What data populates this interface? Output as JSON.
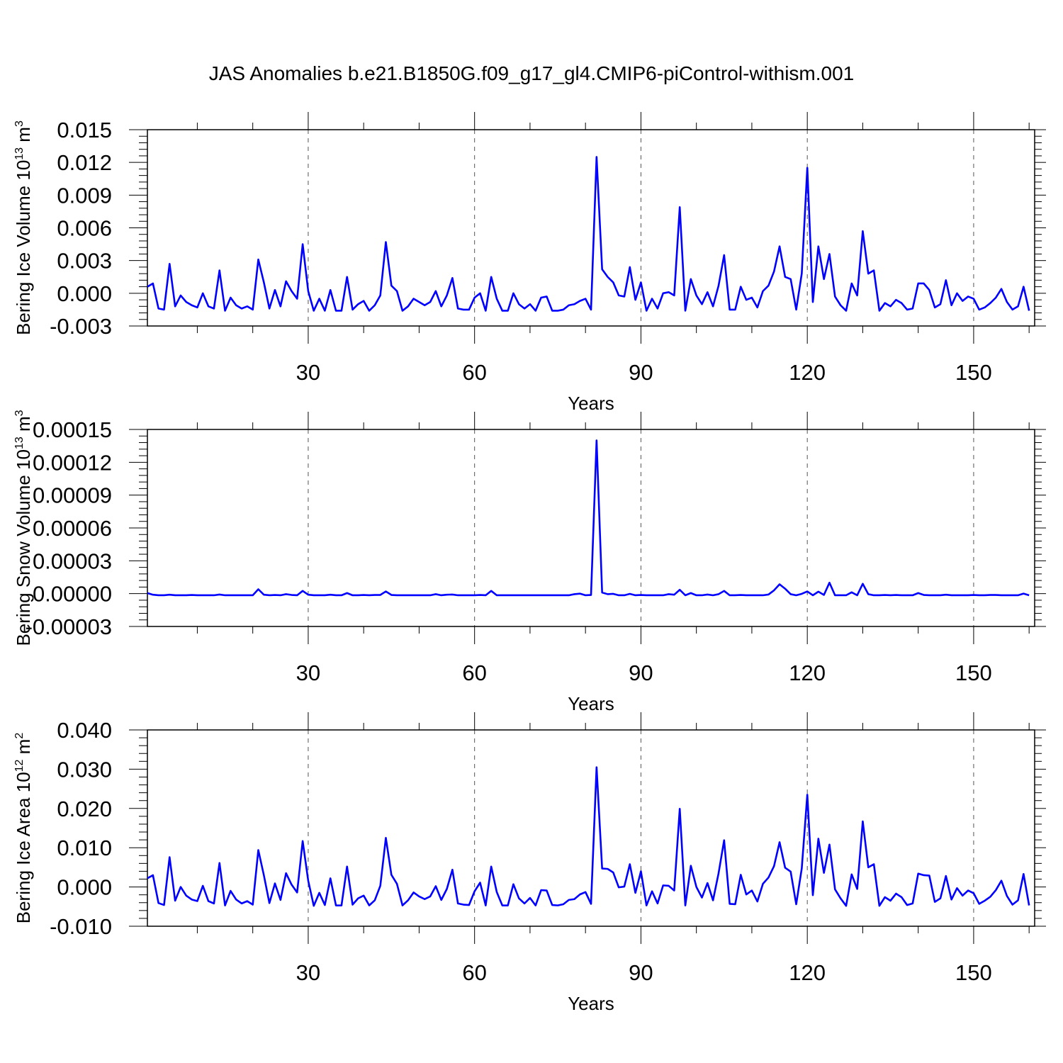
{
  "title": "JAS Anomalies b.e21.B1850G.f09_g17_gl4.CMIP6-piControl-withism.001",
  "line_color": "#0000ff",
  "chart_data": [
    {
      "type": "line",
      "title": "JAS Anomalies b.e21.B1850G.f09_g17_gl4.CMIP6-piControl-withism.001",
      "xlabel": "Years",
      "ylabel": "Bering Ice Volume 10",
      "ylabel_sup1": "13",
      "ylabel_mid": " m",
      "ylabel_sup2": "3",
      "xlim": [
        1,
        161
      ],
      "ylim": [
        -0.003,
        0.015
      ],
      "xticks": [
        30,
        60,
        90,
        120,
        150
      ],
      "xtick_labels": [
        "30",
        "60",
        "90",
        "120",
        "150"
      ],
      "yticks": [
        -0.003,
        0.0,
        0.003,
        0.006,
        0.009,
        0.012,
        0.015
      ],
      "ytick_labels": [
        "-0.003",
        "0.000",
        "0.003",
        "0.006",
        "0.009",
        "0.012",
        "0.015"
      ],
      "grid": "dashed vertical lines at major x ticks",
      "x_start": 1,
      "series": [
        {
          "values": [
            0.0006,
            0.0009,
            -0.0014,
            -0.0015,
            0.0027,
            -0.0012,
            -0.0002,
            -0.0008,
            -0.0011,
            -0.0013,
            0.0,
            -0.0012,
            -0.0014,
            0.0021,
            -0.0016,
            -0.0004,
            -0.0011,
            -0.0014,
            -0.0012,
            -0.0015,
            0.0031,
            0.001,
            -0.0014,
            0.0003,
            -0.0012,
            0.0011,
            0.0002,
            -0.0005,
            0.0045,
            0.0002,
            -0.0016,
            -0.0005,
            -0.0016,
            0.0003,
            -0.0016,
            -0.0016,
            0.0015,
            -0.0015,
            -0.001,
            -0.0007,
            -0.0016,
            -0.0011,
            -0.0002,
            0.0047,
            0.0007,
            0.0002,
            -0.0016,
            -0.0012,
            -0.0005,
            -0.0008,
            -0.0011,
            -0.0008,
            0.0002,
            -0.0012,
            -0.0002,
            0.0014,
            -0.0014,
            -0.0015,
            -0.0015,
            -0.0004,
            0.0,
            -0.0016,
            0.0015,
            -0.0005,
            -0.0016,
            -0.0016,
            0.0,
            -0.001,
            -0.0014,
            -0.001,
            -0.0016,
            -0.0004,
            -0.0003,
            -0.0016,
            -0.0016,
            -0.0015,
            -0.0011,
            -0.001,
            -0.0007,
            -0.0005,
            -0.0015,
            0.0125,
            0.0022,
            0.0015,
            0.001,
            -0.0002,
            -0.0003,
            0.0024,
            -0.0006,
            0.001,
            -0.0016,
            -0.0005,
            -0.0014,
            0.0,
            0.0001,
            -0.0002,
            0.0079,
            -0.0016,
            0.0013,
            -0.0002,
            -0.001,
            0.0001,
            -0.0012,
            0.0007,
            0.0035,
            -0.0015,
            -0.0015,
            0.0006,
            -0.0006,
            -0.0004,
            -0.0013,
            0.0002,
            0.0007,
            0.002,
            0.0043,
            0.0015,
            0.0013,
            -0.0015,
            0.0018,
            0.0115,
            -0.0008,
            0.0043,
            0.0013,
            0.0036,
            -0.0003,
            -0.0011,
            -0.0016,
            0.0009,
            -0.0002,
            0.0057,
            0.0018,
            0.0021,
            -0.0016,
            -0.0009,
            -0.0012,
            -0.0006,
            -0.0009,
            -0.0015,
            -0.0014,
            0.0009,
            0.0009,
            0.0003,
            -0.0013,
            -0.001,
            0.0012,
            -0.0011,
            0.0,
            -0.0007,
            -0.0003,
            -0.0005,
            -0.0015,
            -0.0013,
            -0.0009,
            -0.0004,
            0.0004,
            -0.0008,
            -0.0015,
            -0.0012,
            0.0006,
            -0.0016
          ]
        }
      ]
    },
    {
      "type": "line",
      "xlabel": "Years",
      "ylabel": "Bering Snow Volume 10",
      "ylabel_sup1": "13",
      "ylabel_mid": " m",
      "ylabel_sup2": "3",
      "xlim": [
        1,
        161
      ],
      "ylim": [
        -3e-05,
        0.00015
      ],
      "xticks": [
        30,
        60,
        90,
        120,
        150
      ],
      "xtick_labels": [
        "30",
        "60",
        "90",
        "120",
        "150"
      ],
      "yticks": [
        -3e-05,
        0.0,
        3e-05,
        6e-05,
        9e-05,
        0.00012,
        0.00015
      ],
      "ytick_labels": [
        "-0.00003",
        "0.00000",
        "0.00003",
        "0.00006",
        "0.00009",
        "0.00012",
        "0.00015"
      ],
      "grid": "dashed vertical lines at major x ticks",
      "x_start": 1,
      "series": [
        {
          "values": [
            5e-07,
            -1e-06,
            -1.5e-06,
            -1.5e-06,
            -1e-06,
            -1.5e-06,
            -1.5e-06,
            -1.5e-06,
            -1.2e-06,
            -1.5e-06,
            -1.5e-06,
            -1.5e-06,
            -1.5e-06,
            -8e-07,
            -1.5e-06,
            -1.5e-06,
            -1.5e-06,
            -1.5e-06,
            -1.5e-06,
            -1.5e-06,
            4e-06,
            -1e-06,
            -1.5e-06,
            -1.2e-06,
            -1.5e-06,
            -5e-07,
            -1.2e-06,
            -1.5e-06,
            2.5e-06,
            -1e-06,
            -1.5e-06,
            -1.5e-06,
            -1.5e-06,
            -1e-06,
            -1.5e-06,
            -1.5e-06,
            5e-07,
            -1.5e-06,
            -1.5e-06,
            -1.2e-06,
            -1.5e-06,
            -1.2e-06,
            -1.2e-06,
            2e-06,
            -1.2e-06,
            -1.5e-06,
            -1.5e-06,
            -1.5e-06,
            -1.5e-06,
            -1.5e-06,
            -1.5e-06,
            -1.5e-06,
            -5e-07,
            -1.5e-06,
            -1e-06,
            -8e-07,
            -1.5e-06,
            -1.5e-06,
            -1.5e-06,
            -1.5e-06,
            -1.2e-06,
            -1.5e-06,
            2.5e-06,
            -1.5e-06,
            -1.5e-06,
            -1.5e-06,
            -1.5e-06,
            -1.5e-06,
            -1.5e-06,
            -1.5e-06,
            -1.5e-06,
            -1.5e-06,
            -1.5e-06,
            -1.5e-06,
            -1.5e-06,
            -1.5e-06,
            -1.5e-06,
            -5e-07,
            0.0,
            -1.5e-06,
            -1.2e-06,
            0.00014,
            1e-06,
            -5e-07,
            -2e-07,
            -1.5e-06,
            -1.5e-06,
            -2e-07,
            -1.5e-06,
            -1.2e-06,
            -1.5e-06,
            -1.5e-06,
            -1.5e-06,
            -1.5e-06,
            -5e-07,
            -1e-06,
            3.5e-06,
            -1.5e-06,
            5e-07,
            -1.5e-06,
            -1.5e-06,
            -8e-07,
            -1.5e-06,
            -5e-07,
            2.5e-06,
            -1.5e-06,
            -1.5e-06,
            -1.2e-06,
            -1.5e-06,
            -1.5e-06,
            -1.5e-06,
            -1.5e-06,
            -8e-07,
            3e-06,
            8.5e-06,
            4.5e-06,
            -5e-07,
            -1.5e-06,
            -2e-07,
            2e-06,
            -1.5e-06,
            1.8e-06,
            -1.2e-06,
            1e-05,
            -1.5e-06,
            -1.5e-06,
            -1.5e-06,
            1.2e-06,
            -1.5e-06,
            9e-06,
            -5e-07,
            -1.5e-06,
            -1.5e-06,
            -1.2e-06,
            -1.5e-06,
            -1.2e-06,
            -1.5e-06,
            -1.5e-06,
            -1.5e-06,
            5e-07,
            -1.2e-06,
            -1.5e-06,
            -1.5e-06,
            -1.5e-06,
            -1e-06,
            -1.5e-06,
            -1.5e-06,
            -1.5e-06,
            -1.5e-06,
            -1.2e-06,
            -1.5e-06,
            -1.5e-06,
            -1.2e-06,
            -1.2e-06,
            -1.5e-06,
            -1.5e-06,
            -1.5e-06,
            -1.5e-06,
            0.0,
            -1.5e-06
          ]
        }
      ]
    },
    {
      "type": "line",
      "xlabel": "Years",
      "ylabel": "Bering Ice Area 10",
      "ylabel_sup1": "12",
      "ylabel_mid": " m",
      "ylabel_sup2": "2",
      "xlim": [
        1,
        161
      ],
      "ylim": [
        -0.01,
        0.04
      ],
      "xticks": [
        30,
        60,
        90,
        120,
        150
      ],
      "xtick_labels": [
        "30",
        "60",
        "90",
        "120",
        "150"
      ],
      "yticks": [
        -0.01,
        0.0,
        0.01,
        0.02,
        0.03,
        0.04
      ],
      "ytick_labels": [
        "-0.010",
        "0.000",
        "0.010",
        "0.020",
        "0.030",
        "0.040"
      ],
      "grid": "dashed vertical lines at major x ticks",
      "x_start": 1,
      "series": [
        {
          "values": [
            0.0022,
            0.003,
            -0.0041,
            -0.0046,
            0.0076,
            -0.0035,
            0.0,
            -0.0022,
            -0.0032,
            -0.0036,
            0.0003,
            -0.0036,
            -0.0042,
            0.0061,
            -0.0047,
            -0.001,
            -0.0032,
            -0.0042,
            -0.0036,
            -0.0045,
            0.0094,
            0.003,
            -0.0041,
            0.0009,
            -0.0033,
            0.0035,
            0.0006,
            -0.0014,
            0.0117,
            0.0016,
            -0.0048,
            -0.0015,
            -0.0046,
            0.0022,
            -0.0047,
            -0.0047,
            0.0052,
            -0.0045,
            -0.0029,
            -0.0022,
            -0.0047,
            -0.0034,
            0.0003,
            0.0125,
            0.0031,
            0.0008,
            -0.0047,
            -0.0034,
            -0.0014,
            -0.0024,
            -0.0031,
            -0.0024,
            0.0002,
            -0.0033,
            -0.0005,
            0.0044,
            -0.0042,
            -0.0045,
            -0.0046,
            -0.0011,
            0.0011,
            -0.0047,
            0.0052,
            -0.0013,
            -0.0047,
            -0.0047,
            0.0007,
            -0.0029,
            -0.0042,
            -0.0028,
            -0.0047,
            -0.0008,
            -0.0009,
            -0.0046,
            -0.0047,
            -0.0044,
            -0.0033,
            -0.0031,
            -0.0019,
            -0.0013,
            -0.0043,
            0.0305,
            0.0047,
            0.0046,
            0.0037,
            -0.0001,
            0.0001,
            0.0058,
            -0.0015,
            0.004,
            -0.0047,
            -0.0011,
            -0.0042,
            0.0004,
            0.0003,
            -0.0009,
            0.0199,
            -0.0047,
            0.0054,
            0.0,
            -0.0027,
            0.001,
            -0.0034,
            0.0035,
            0.0119,
            -0.0043,
            -0.0044,
            0.0031,
            -0.0019,
            -0.0009,
            -0.0037,
            0.0008,
            0.0024,
            0.0053,
            0.0114,
            0.0049,
            0.0039,
            -0.0044,
            0.0047,
            0.0235,
            -0.0021,
            0.0123,
            0.0036,
            0.0108,
            -0.0006,
            -0.0029,
            -0.0048,
            0.0032,
            -0.0005,
            0.0167,
            0.005,
            0.0058,
            -0.0048,
            -0.0026,
            -0.0035,
            -0.0017,
            -0.0026,
            -0.0046,
            -0.0042,
            0.0034,
            0.003,
            0.0029,
            -0.0038,
            -0.0029,
            0.0028,
            -0.0032,
            -0.0003,
            -0.0022,
            -0.0009,
            -0.0016,
            -0.0043,
            -0.0035,
            -0.0025,
            -0.0008,
            0.0016,
            -0.0023,
            -0.0045,
            -0.0034,
            0.0033,
            -0.0047
          ]
        }
      ]
    }
  ]
}
